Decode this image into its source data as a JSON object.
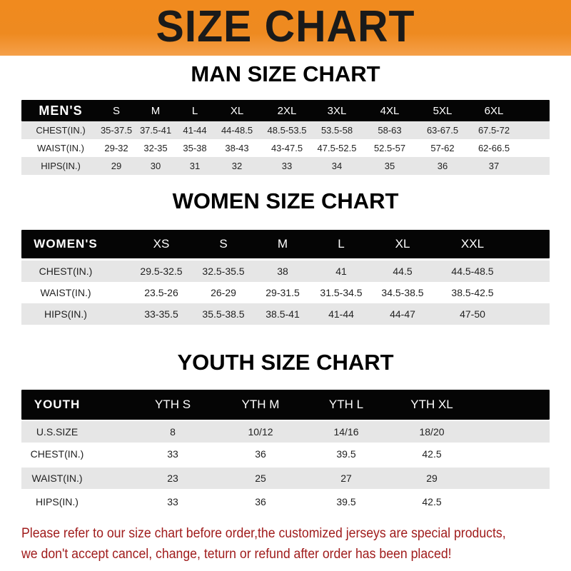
{
  "banner_title": "SIZE CHART",
  "accent_color": "#f08a1e",
  "notice_color": "#a01c1c",
  "men": {
    "title": "MAN SIZE CHART",
    "header": [
      "MEN'S",
      "S",
      "M",
      "L",
      "XL",
      "2XL",
      "3XL",
      "4XL",
      "5XL",
      "6XL"
    ],
    "rows": [
      [
        "CHEST(IN.)",
        "35-37.5",
        "37.5-41",
        "41-44",
        "44-48.5",
        "48.5-53.5",
        "53.5-58",
        "58-63",
        "63-67.5",
        "67.5-72"
      ],
      [
        "WAIST(IN.)",
        "29-32",
        "32-35",
        "35-38",
        "38-43",
        "43-47.5",
        "47.5-52.5",
        "52.5-57",
        "57-62",
        "62-66.5"
      ],
      [
        "HIPS(IN.)",
        "29",
        "30",
        "31",
        "32",
        "33",
        "34",
        "35",
        "36",
        "37"
      ]
    ]
  },
  "women": {
    "title": "WOMEN SIZE CHART",
    "header": [
      "WOMEN'S",
      "XS",
      "S",
      "M",
      "L",
      "XL",
      "XXL"
    ],
    "rows": [
      [
        "CHEST(IN.)",
        "29.5-32.5",
        "32.5-35.5",
        "38",
        "41",
        "44.5",
        "44.5-48.5"
      ],
      [
        "WAIST(IN.)",
        "23.5-26",
        "26-29",
        "29-31.5",
        "31.5-34.5",
        "34.5-38.5",
        "38.5-42.5"
      ],
      [
        "HIPS(IN.)",
        "33-35.5",
        "35.5-38.5",
        "38.5-41",
        "41-44",
        "44-47",
        "47-50"
      ]
    ]
  },
  "youth": {
    "title": "YOUTH SIZE CHART",
    "header": [
      "YOUTH",
      "YTH S",
      "YTH M",
      "YTH L",
      "YTH XL"
    ],
    "rows": [
      [
        "U.S.SIZE",
        "8",
        "10/12",
        "14/16",
        "18/20"
      ],
      [
        "CHEST(IN.)",
        "33",
        "36",
        "39.5",
        "42.5"
      ],
      [
        "WAIST(IN.)",
        "23",
        "25",
        "27",
        "29"
      ],
      [
        "HIPS(IN.)",
        "33",
        "36",
        "39.5",
        "42.5"
      ]
    ]
  },
  "notice": {
    "line1": "Please refer to our size chart before order,the customized jerseys are special products,",
    "line2": "we don't accept cancel, change, teturn or refund after order has been placed!"
  }
}
